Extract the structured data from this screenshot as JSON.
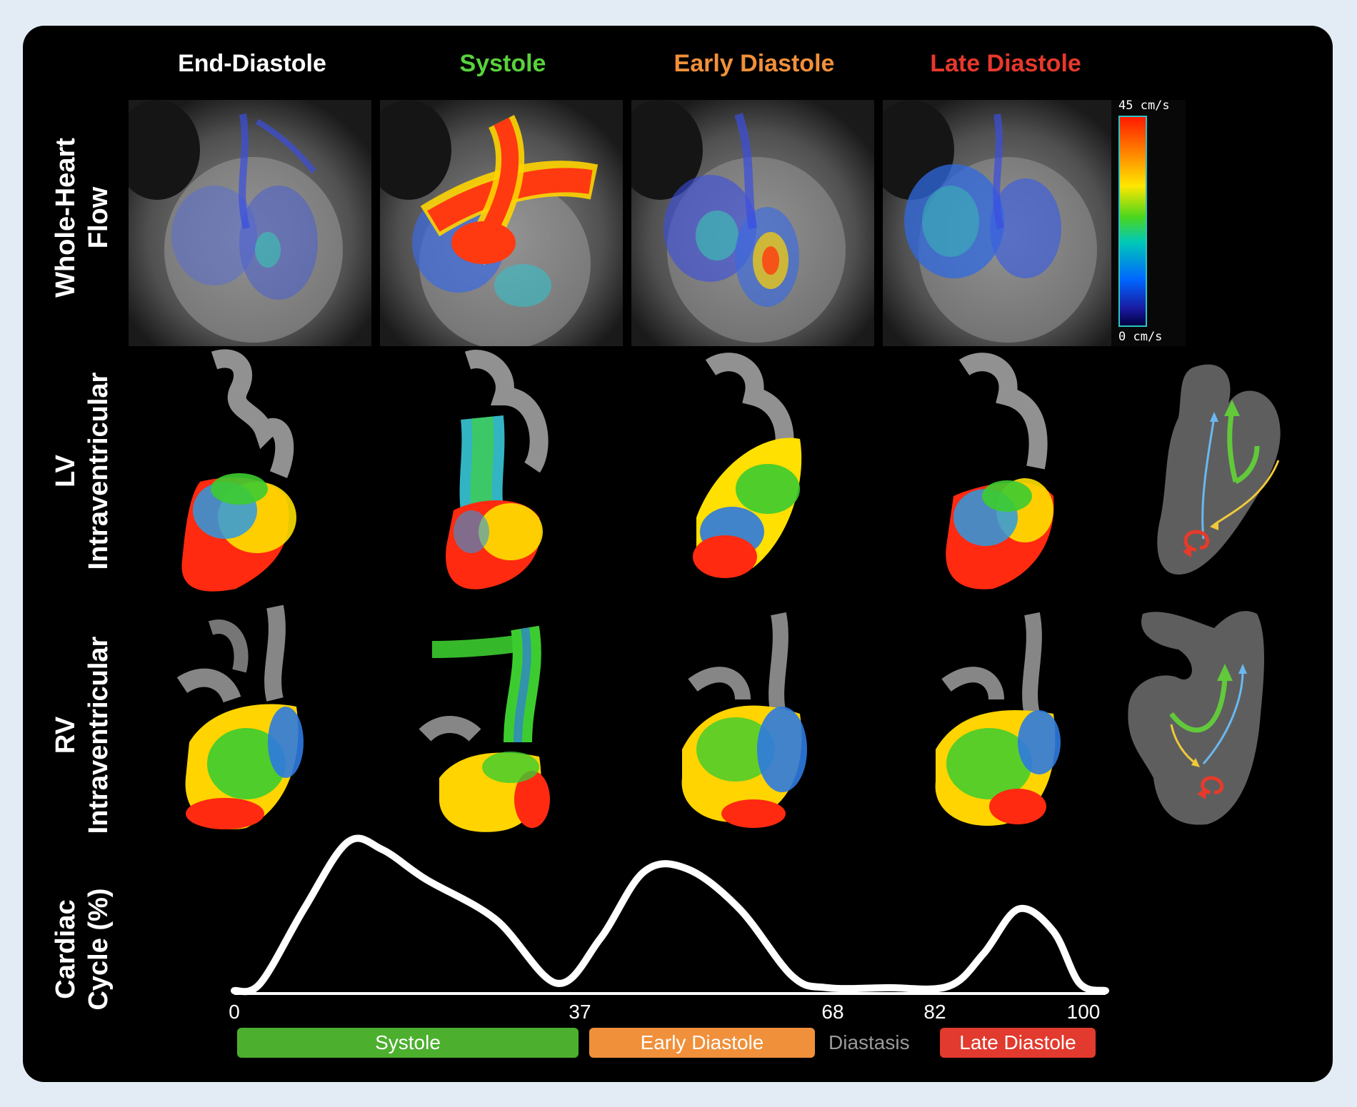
{
  "columns": [
    {
      "title": "End-Diastole",
      "color": "#ffffff"
    },
    {
      "title": "Systole",
      "color": "#58d23c"
    },
    {
      "title": "Early Diastole",
      "color": "#f0903a"
    },
    {
      "title": "Late Diastole",
      "color": "#e8382c"
    }
  ],
  "rows": {
    "whole_heart": [
      "Whole-Heart",
      "Flow"
    ],
    "lv": [
      "LV",
      "Intraventricular"
    ],
    "rv": [
      "RV",
      "Intraventricular"
    ],
    "cycle": [
      "Cardiac",
      "Cycle (%)"
    ]
  },
  "colorbar": {
    "max_label": "45 cm/s",
    "min_label": "0 cm/s"
  },
  "cycle_axis": {
    "ticks": [
      "0",
      "37",
      "68",
      "82",
      "100"
    ]
  },
  "phases": [
    {
      "label": "Systole",
      "color": "#4caf2e"
    },
    {
      "label": "Early Diastole",
      "color": "#f0903a"
    },
    {
      "label": "Diastasis",
      "color": "#9a9a9a"
    },
    {
      "label": "Late Diastole",
      "color": "#e23a2e"
    }
  ],
  "chart_data": {
    "type": "line",
    "x": [
      0,
      3,
      8,
      13,
      17,
      22,
      30,
      37,
      42,
      47,
      52,
      58,
      64,
      68,
      75,
      82,
      86,
      90,
      94,
      97,
      100
    ],
    "values": [
      0,
      0.05,
      0.55,
      1.0,
      0.95,
      0.75,
      0.48,
      0.05,
      0.35,
      0.8,
      0.82,
      0.55,
      0.1,
      0.02,
      0.02,
      0.03,
      0.25,
      0.55,
      0.4,
      0.05,
      0
    ],
    "xlabel": "",
    "ylabel": "",
    "xlim": [
      0,
      100
    ]
  }
}
